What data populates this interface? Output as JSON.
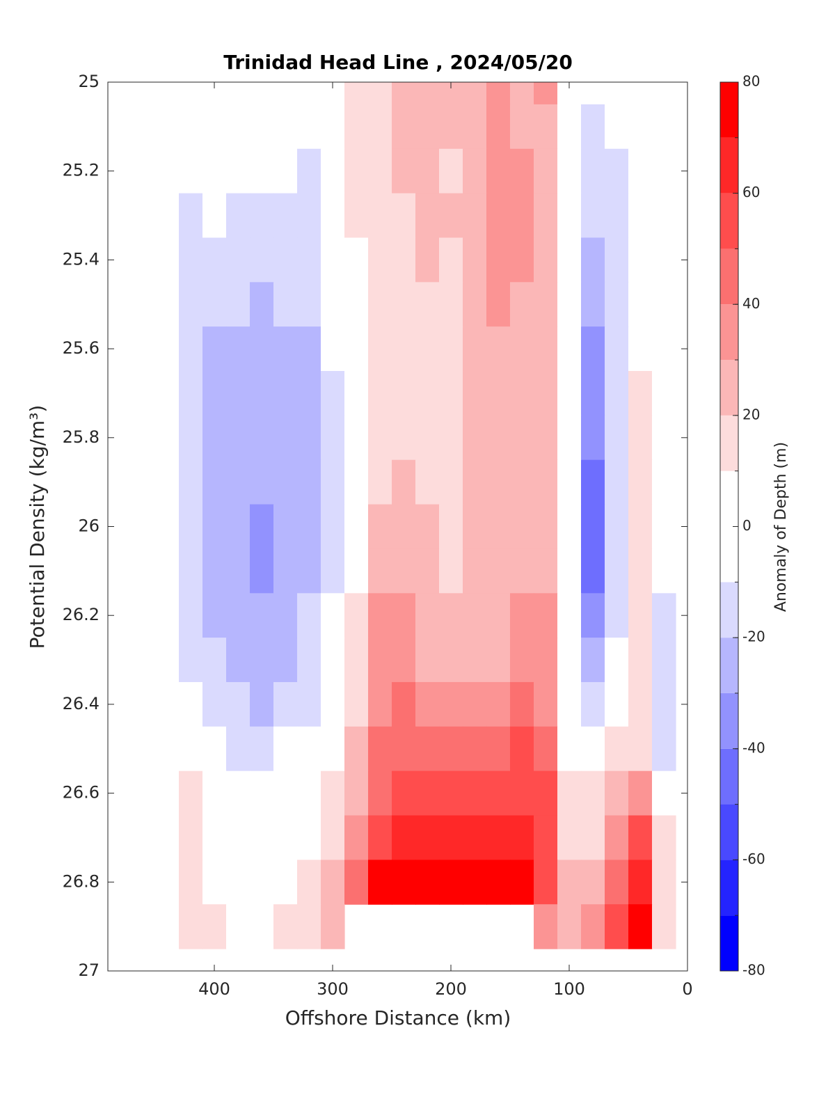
{
  "chart_data": {
    "type": "contour",
    "title": "Trinidad Head Line , 2024/05/20",
    "x_label": "Offshore Distance (km)",
    "y_label": "Potential Density (kg/m³)",
    "xlim": [
      490,
      0
    ],
    "xticks": [
      400,
      300,
      200,
      100,
      0
    ],
    "ylim": [
      25,
      27
    ],
    "y_inverted": true,
    "yticks": [
      25,
      25.2,
      25.4,
      25.6,
      25.8,
      26,
      26.2,
      26.4,
      26.6,
      26.8,
      27
    ],
    "x": [
      420,
      400,
      380,
      360,
      340,
      320,
      300,
      280,
      260,
      240,
      220,
      200,
      180,
      160,
      140,
      120,
      100,
      80,
      60,
      40,
      20
    ],
    "y": [
      25,
      25.1,
      25.2,
      25.3,
      25.4,
      25.5,
      25.6,
      25.7,
      25.8,
      25.9,
      26,
      26.1,
      26.2,
      26.3,
      26.4,
      26.5,
      26.6,
      26.7,
      26.8,
      26.9
    ],
    "z": [
      [
        2,
        0,
        -2,
        -3,
        -4,
        -2,
        5,
        15,
        15,
        22,
        22,
        22,
        25,
        32,
        28,
        32,
        2,
        -2,
        0,
        0,
        0
      ],
      [
        0,
        -3,
        -5,
        -6,
        -7,
        -5,
        3,
        12,
        15,
        22,
        22,
        20,
        22,
        32,
        28,
        25,
        -2,
        -12,
        -5,
        0,
        0
      ],
      [
        -2,
        -6,
        -8,
        -9,
        -10,
        -12,
        0,
        11,
        16,
        20,
        25,
        18,
        25,
        35,
        30,
        22,
        -5,
        -15,
        -12,
        0,
        0
      ],
      [
        -12,
        -10,
        -12,
        -14,
        -15,
        -14,
        -2,
        10,
        15,
        18,
        25,
        22,
        25,
        35,
        32,
        22,
        -5,
        -20,
        -14,
        0,
        0
      ],
      [
        -15,
        -14,
        -15,
        -15,
        -16,
        -15,
        -5,
        8,
        15,
        18,
        20,
        18,
        22,
        35,
        32,
        22,
        -5,
        -25,
        -15,
        -2,
        0
      ],
      [
        -15,
        -16,
        -18,
        -21,
        -20,
        -18,
        -8,
        5,
        14,
        18,
        18,
        18,
        20,
        32,
        28,
        20,
        -5,
        -30,
        -18,
        5,
        0
      ],
      [
        -16,
        -22,
        -21,
        -25,
        -23,
        -21,
        -10,
        5,
        14,
        18,
        18,
        18,
        20,
        28,
        25,
        22,
        -3,
        -32,
        -18,
        8,
        0
      ],
      [
        -16,
        -24,
        -25,
        -26,
        -26,
        -24,
        -12,
        5,
        14,
        18,
        18,
        18,
        20,
        25,
        22,
        22,
        -3,
        -35,
        -18,
        10,
        -3
      ],
      [
        -16,
        -26,
        -26,
        -27,
        -27,
        -25,
        -12,
        5,
        15,
        18,
        18,
        18,
        20,
        25,
        22,
        22,
        -3,
        -38,
        -15,
        12,
        0
      ],
      [
        -16,
        -26,
        -27,
        -28,
        -28,
        -25,
        -12,
        5,
        18,
        22,
        18,
        18,
        20,
        25,
        25,
        25,
        -3,
        -42,
        -15,
        12,
        0
      ],
      [
        -16,
        -26,
        -28,
        -32,
        -28,
        -24,
        -12,
        6,
        22,
        25,
        20,
        18,
        20,
        25,
        25,
        25,
        -3,
        -45,
        -14,
        12,
        -5
      ],
      [
        -15,
        -25,
        -27,
        -33,
        -28,
        -22,
        -11,
        8,
        25,
        28,
        22,
        18,
        20,
        25,
        25,
        28,
        -3,
        -44,
        -14,
        12,
        -10
      ],
      [
        -14,
        -22,
        -25,
        -28,
        -25,
        -20,
        -8,
        12,
        32,
        35,
        25,
        20,
        22,
        25,
        30,
        32,
        -3,
        -35,
        -12,
        12,
        -12
      ],
      [
        -12,
        -18,
        -22,
        -26,
        -22,
        -18,
        -5,
        15,
        35,
        38,
        28,
        28,
        25,
        28,
        35,
        35,
        -2,
        -28,
        -10,
        12,
        -12
      ],
      [
        -10,
        -15,
        -18,
        -25,
        -20,
        -15,
        -2,
        18,
        38,
        42,
        38,
        35,
        35,
        38,
        40,
        38,
        0,
        -18,
        -5,
        14,
        -12
      ],
      [
        2,
        -8,
        -12,
        -14,
        -10,
        -5,
        5,
        22,
        42,
        48,
        48,
        46,
        45,
        48,
        50,
        45,
        8,
        0,
        12,
        18,
        -12
      ],
      [
        10,
        5,
        2,
        0,
        0,
        2,
        10,
        28,
        48,
        55,
        55,
        58,
        55,
        55,
        58,
        52,
        15,
        10,
        22,
        32,
        5
      ],
      [
        12,
        5,
        3,
        4,
        4,
        5,
        12,
        35,
        58,
        65,
        62,
        65,
        62,
        62,
        65,
        55,
        18,
        18,
        35,
        50,
        15
      ],
      [
        12,
        4,
        3,
        4,
        6,
        10,
        20,
        48,
        70,
        75,
        72,
        75,
        72,
        72,
        70,
        50,
        20,
        25,
        42,
        60,
        15
      ],
      [
        10,
        10,
        3,
        4,
        10,
        12,
        20,
        null,
        null,
        null,
        null,
        null,
        null,
        null,
        null,
        30,
        22,
        30,
        50,
        72,
        15
      ]
    ],
    "colorbar": {
      "label": "Anomaly of Depth (m)",
      "levels": [
        -80,
        -70,
        -60,
        -50,
        -40,
        -30,
        -20,
        -10,
        0,
        10,
        20,
        30,
        40,
        50,
        60,
        70,
        80
      ],
      "colors": [
        "#0000ff",
        "#2424ff",
        "#4949ff",
        "#6e6efe",
        "#9292fe",
        "#b6b6fe",
        "#dadafe",
        "#ffffff",
        "#ffffff",
        "#fddcdc",
        "#fbb7b7",
        "#fb9494",
        "#fb7070",
        "#ff4d4d",
        "#ff2828",
        "#ff0000"
      ],
      "ticks": [
        -80,
        -60,
        -40,
        -20,
        0,
        20,
        40,
        60,
        80
      ]
    }
  }
}
